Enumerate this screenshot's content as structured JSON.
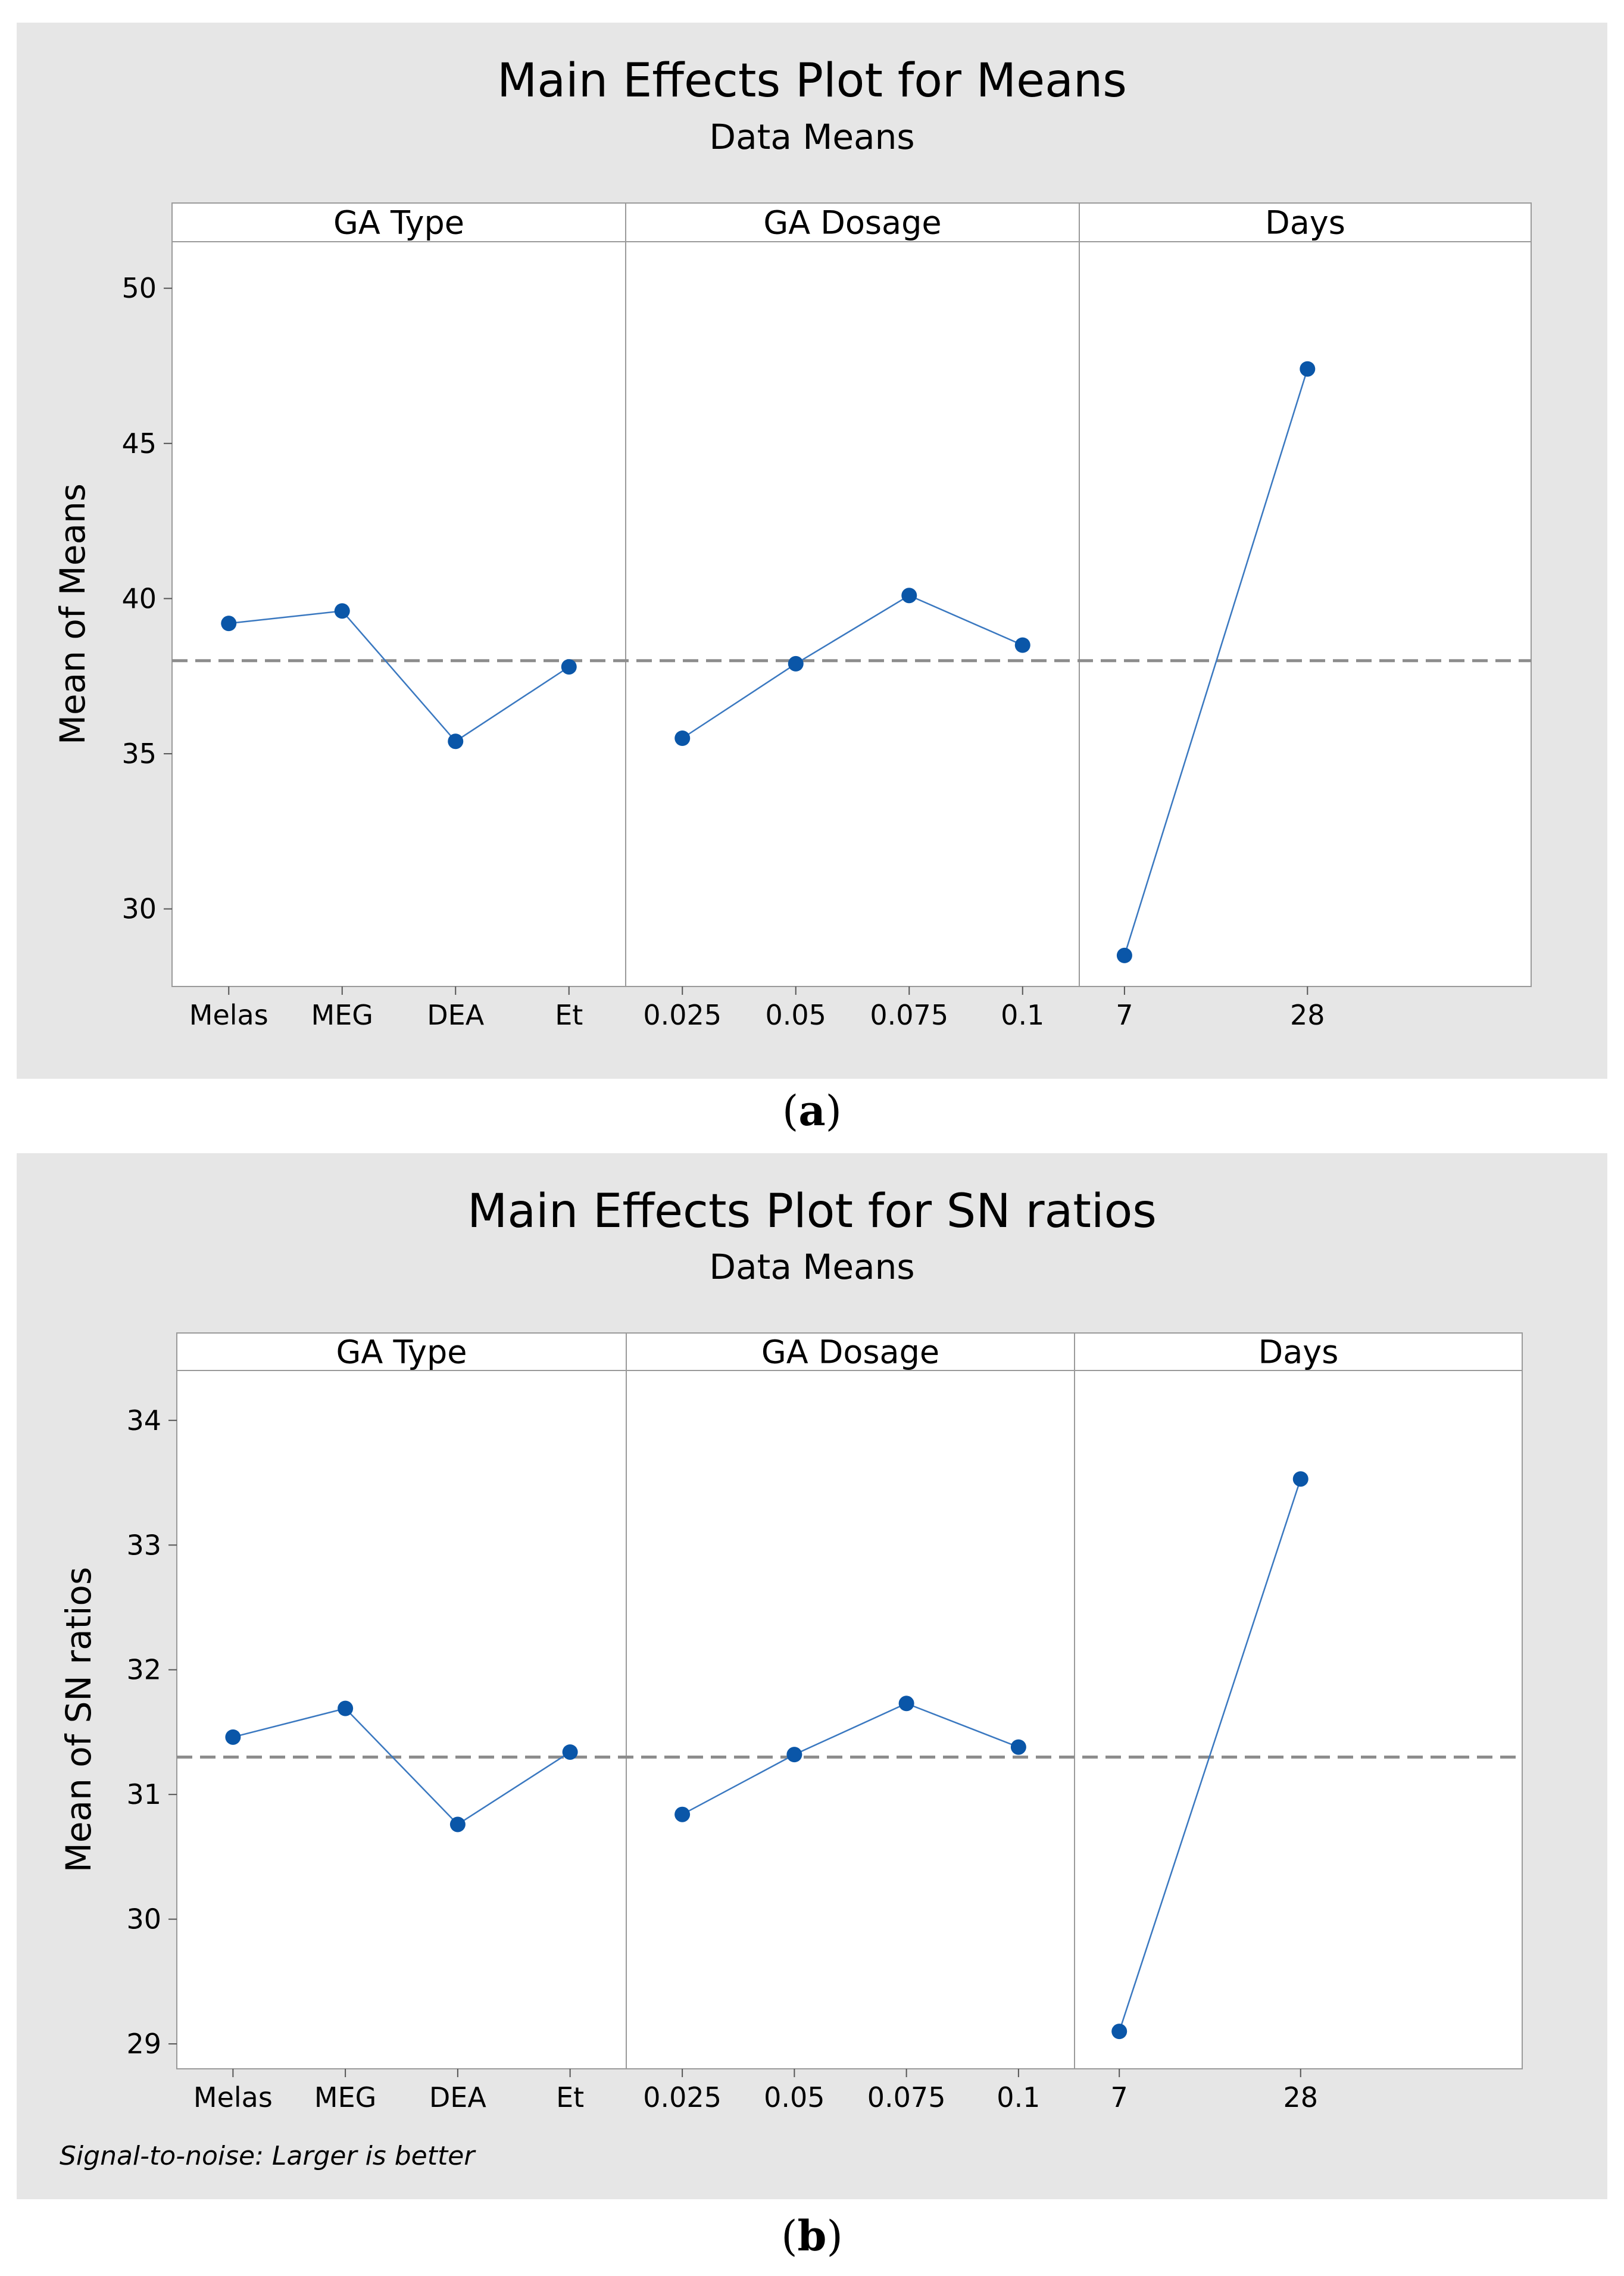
{
  "charts": [
    {
      "caption": "a",
      "chart_data": {
        "type": "line",
        "title": "Main Effects Plot for Means",
        "subtitle": "Data Means",
        "ylabel": "Mean of Means",
        "ylim": [
          27.5,
          51.5
        ],
        "yticks": [
          30,
          35,
          40,
          45,
          50
        ],
        "reference_line": 38.0,
        "footnote": "",
        "panels": [
          {
            "name": "GA Type",
            "categories": [
              "Melas",
              "MEG",
              "DEA",
              "Et"
            ],
            "values": [
              39.2,
              39.6,
              35.4,
              37.8
            ]
          },
          {
            "name": "GA Dosage",
            "categories": [
              "0.025",
              "0.05",
              "0.075",
              "0.1"
            ],
            "values": [
              35.5,
              37.9,
              40.1,
              38.5
            ]
          },
          {
            "name": "Days",
            "categories": [
              "7",
              "28"
            ],
            "values": [
              28.5,
              47.4
            ]
          }
        ]
      }
    },
    {
      "caption": "b",
      "chart_data": {
        "type": "line",
        "title": "Main Effects Plot for SN ratios",
        "subtitle": "Data Means",
        "ylabel": "Mean of SN ratios",
        "ylim": [
          28.8,
          34.4
        ],
        "yticks": [
          29,
          30,
          31,
          32,
          33,
          34
        ],
        "reference_line": 31.3,
        "footnote": "Signal-to-noise: Larger is better",
        "panels": [
          {
            "name": "GA Type",
            "categories": [
              "Melas",
              "MEG",
              "DEA",
              "Et"
            ],
            "values": [
              31.46,
              31.69,
              30.76,
              31.34
            ]
          },
          {
            "name": "GA Dosage",
            "categories": [
              "0.025",
              "0.05",
              "0.075",
              "0.1"
            ],
            "values": [
              30.84,
              31.32,
              31.73,
              31.38
            ]
          },
          {
            "name": "Days",
            "categories": [
              "7",
              "28"
            ],
            "values": [
              29.1,
              33.53
            ]
          }
        ]
      }
    }
  ]
}
